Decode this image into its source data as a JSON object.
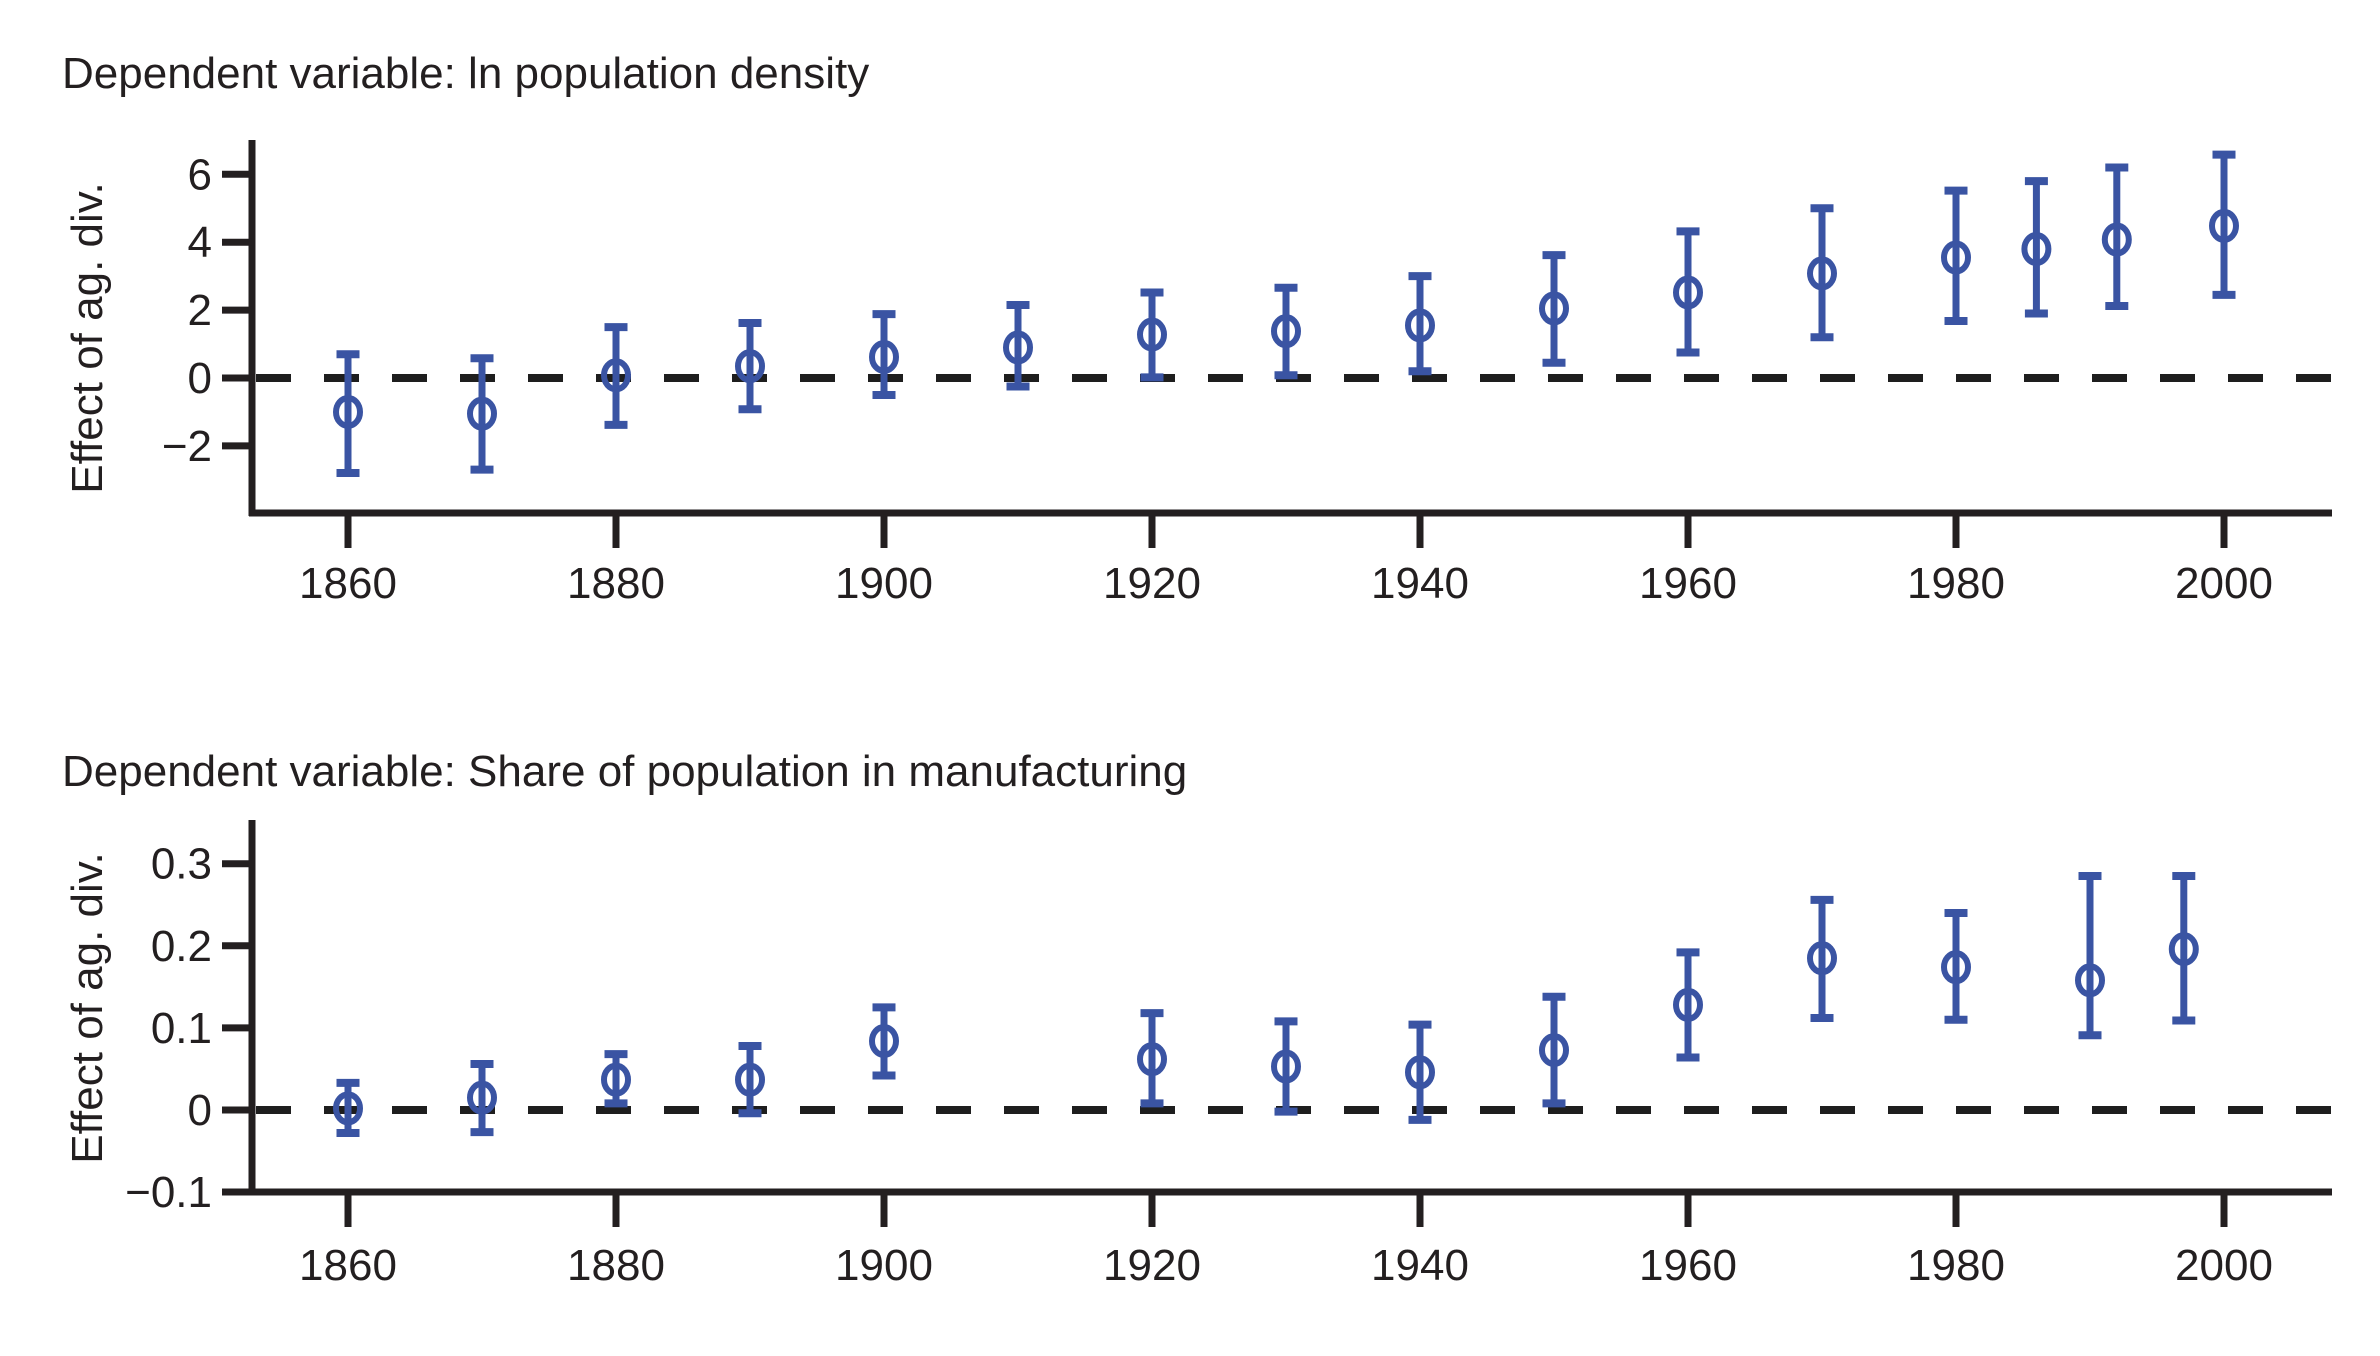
{
  "figure": {
    "background": "#ffffff"
  },
  "styles": {
    "marker_color": "#3a54a3",
    "axis_color": "#231f20",
    "dash_color": "#1e1e1e",
    "text_color": "#231f20"
  },
  "chart_data": [
    {
      "type": "scatter",
      "subtype": "errorbar",
      "title": "Dependent variable: ln population density",
      "ylabel": "Effect of ag. div.",
      "xlabel": "",
      "legend": "none",
      "grid": false,
      "zero_reference_line": true,
      "x": [
        1860,
        1870,
        1880,
        1890,
        1900,
        1910,
        1920,
        1930,
        1940,
        1950,
        1960,
        1970,
        1980,
        1986,
        1992,
        2000
      ],
      "estimates": [
        -1.0,
        -1.05,
        0.08,
        0.35,
        0.62,
        0.9,
        1.28,
        1.38,
        1.55,
        2.05,
        2.52,
        3.08,
        3.55,
        3.8,
        4.08,
        4.48
      ],
      "ci_low": [
        -2.8,
        -2.7,
        -1.38,
        -0.92,
        -0.5,
        -0.25,
        0.02,
        0.08,
        0.2,
        0.45,
        0.75,
        1.2,
        1.68,
        1.9,
        2.12,
        2.45
      ],
      "ci_high": [
        0.7,
        0.58,
        1.5,
        1.62,
        1.88,
        2.15,
        2.52,
        2.66,
        3.0,
        3.62,
        4.32,
        5.0,
        5.52,
        5.8,
        6.2,
        6.58
      ],
      "xticks": [
        1860,
        1880,
        1900,
        1920,
        1940,
        1960,
        1980,
        2000
      ],
      "xtick_labels": [
        "1860",
        "1880",
        "1900",
        "1920",
        "1940",
        "1960",
        "1980",
        "2000"
      ],
      "yticks": [
        6,
        4,
        2,
        0,
        -2
      ],
      "ytick_labels": [
        "6",
        "4",
        "2",
        "0",
        "−2"
      ],
      "ylim": [
        -4.0,
        7.0
      ],
      "xlim": [
        1852.6,
        2008.0
      ]
    },
    {
      "type": "scatter",
      "subtype": "errorbar",
      "title": "Dependent variable: Share of population in manufacturing",
      "ylabel": "Effect of ag. div.",
      "xlabel": "",
      "legend": "none",
      "grid": false,
      "zero_reference_line": true,
      "x": [
        1860,
        1870,
        1880,
        1890,
        1900,
        1920,
        1930,
        1940,
        1950,
        1960,
        1970,
        1980,
        1990,
        1997
      ],
      "estimates": [
        0.002,
        0.015,
        0.037,
        0.037,
        0.084,
        0.062,
        0.053,
        0.046,
        0.073,
        0.128,
        0.185,
        0.174,
        0.158,
        0.196
      ],
      "ci_low": [
        -0.028,
        -0.027,
        0.008,
        -0.004,
        0.042,
        0.008,
        -0.002,
        -0.012,
        0.008,
        0.064,
        0.112,
        0.11,
        0.091,
        0.109
      ],
      "ci_high": [
        0.033,
        0.056,
        0.068,
        0.078,
        0.125,
        0.118,
        0.108,
        0.104,
        0.138,
        0.192,
        0.256,
        0.24,
        0.285,
        0.285
      ],
      "xticks": [
        1860,
        1880,
        1900,
        1920,
        1940,
        1960,
        1980,
        2000
      ],
      "xtick_labels": [
        "1860",
        "1880",
        "1900",
        "1920",
        "1940",
        "1960",
        "1980",
        "2000"
      ],
      "yticks": [
        0.3,
        0.2,
        0.1,
        0,
        -0.1
      ],
      "ytick_labels": [
        "0.3",
        "0.2",
        "0.1",
        "0",
        "−0.1"
      ],
      "ylim": [
        -0.1,
        0.353
      ],
      "xlim": [
        1852.6,
        2008.0
      ]
    }
  ]
}
